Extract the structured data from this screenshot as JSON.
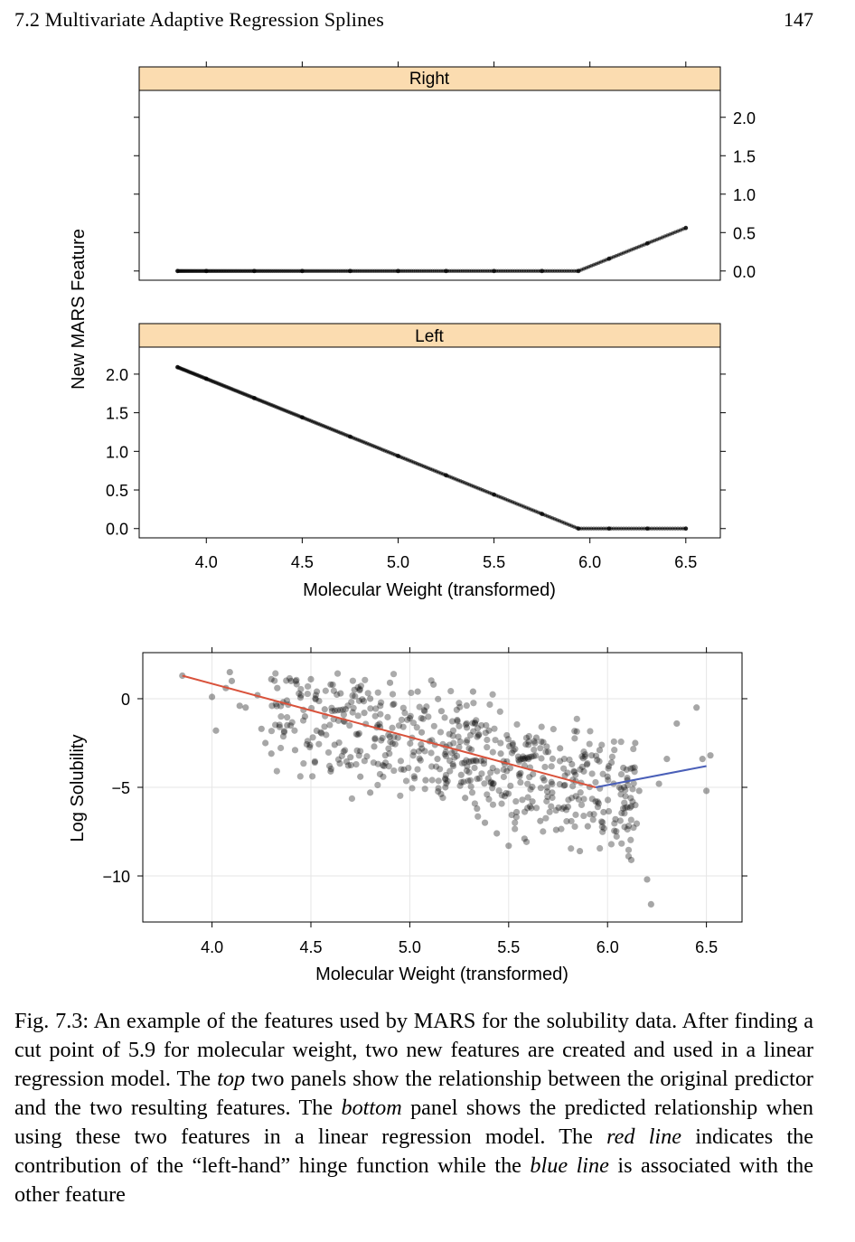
{
  "header": {
    "section_title": "7.2 Multivariate Adaptive Regression Splines",
    "page_number": "147"
  },
  "figure_top": {
    "y_axis_label": "New MARS Feature",
    "x_axis_label": "Molecular Weight (transformed)",
    "strip_color": "#fbdcb0",
    "panels": [
      {
        "strip_label": "Right",
        "y_tick_side": "right"
      },
      {
        "strip_label": "Left",
        "y_tick_side": "left"
      }
    ]
  },
  "figure_bottom": {
    "y_axis_label": "Log Solubility",
    "x_axis_label": "Molecular Weight (transformed)",
    "left_fit_color": "#d9523b",
    "right_fit_color": "#4a5fb8"
  },
  "chart_data": [
    {
      "type": "line",
      "panel": "Right",
      "xlabel": "",
      "ylabel": "New MARS Feature",
      "xlim": [
        3.65,
        6.68
      ],
      "ylim": [
        -0.12,
        2.35
      ],
      "x_ticks": [
        "4.0",
        "4.5",
        "5.0",
        "5.5",
        "6.0",
        "6.5"
      ],
      "y_ticks": [
        "0.0",
        "0.5",
        "1.0",
        "1.5",
        "2.0"
      ],
      "hinge": {
        "cut": 5.94,
        "direction": "right"
      },
      "x": [
        3.85,
        4.0,
        4.25,
        4.5,
        4.75,
        5.0,
        5.25,
        5.5,
        5.75,
        5.94,
        6.1,
        6.3,
        6.5
      ],
      "y": [
        0.0,
        0.0,
        0.0,
        0.0,
        0.0,
        0.0,
        0.0,
        0.0,
        0.0,
        0.0,
        0.16,
        0.36,
        0.56
      ]
    },
    {
      "type": "line",
      "panel": "Left",
      "xlabel": "Molecular Weight (transformed)",
      "ylabel": "New MARS Feature",
      "xlim": [
        3.65,
        6.68
      ],
      "ylim": [
        -0.12,
        2.35
      ],
      "x_ticks": [
        "4.0",
        "4.5",
        "5.0",
        "5.5",
        "6.0",
        "6.5"
      ],
      "y_ticks": [
        "0.0",
        "0.5",
        "1.0",
        "1.5",
        "2.0"
      ],
      "hinge": {
        "cut": 5.94,
        "direction": "left"
      },
      "x": [
        3.85,
        4.0,
        4.25,
        4.5,
        4.75,
        5.0,
        5.25,
        5.5,
        5.75,
        5.94,
        6.1,
        6.3,
        6.5
      ],
      "y": [
        2.09,
        1.94,
        1.69,
        1.44,
        1.19,
        0.94,
        0.69,
        0.44,
        0.19,
        0.0,
        0.0,
        0.0,
        0.0
      ]
    },
    {
      "type": "scatter",
      "xlabel": "Molecular Weight (transformed)",
      "ylabel": "Log Solubility",
      "xlim": [
        3.65,
        6.68
      ],
      "ylim": [
        -12.6,
        2.6
      ],
      "x_ticks": [
        "4.0",
        "4.5",
        "5.0",
        "5.5",
        "6.0",
        "6.5"
      ],
      "y_ticks": [
        "0",
        "−5",
        "−10"
      ],
      "fit_left": {
        "x": [
          3.85,
          5.94
        ],
        "y": [
          1.3,
          -5.0
        ]
      },
      "fit_right": {
        "x": [
          5.94,
          6.5
        ],
        "y": [
          -5.0,
          -3.8
        ]
      },
      "points": [
        [
          3.85,
          1.3
        ],
        [
          4.0,
          0.1
        ],
        [
          4.02,
          -1.8
        ],
        [
          4.07,
          0.6
        ],
        [
          4.09,
          1.5
        ],
        [
          4.1,
          1.0
        ],
        [
          4.14,
          -0.4
        ],
        [
          4.17,
          -0.5
        ],
        [
          4.23,
          0.2
        ],
        [
          4.25,
          -1.7
        ],
        [
          4.27,
          -2.5
        ],
        [
          4.3,
          -3.1
        ],
        [
          4.3,
          1.1
        ],
        [
          4.33,
          0.6
        ],
        [
          4.36,
          -0.2
        ],
        [
          4.38,
          -1.5
        ],
        [
          4.4,
          1.0
        ],
        [
          4.42,
          -2.9
        ],
        [
          4.45,
          0.2
        ],
        [
          4.47,
          -1.0
        ],
        [
          4.5,
          1.1
        ],
        [
          4.52,
          -3.6
        ],
        [
          4.53,
          0.4
        ],
        [
          4.55,
          -1.9
        ],
        [
          4.57,
          -0.6
        ],
        [
          4.6,
          0.8
        ],
        [
          4.6,
          -4.1
        ],
        [
          4.62,
          -2.6
        ],
        [
          4.65,
          0.3
        ],
        [
          4.67,
          -1.3
        ],
        [
          4.7,
          -3.3
        ],
        [
          4.72,
          0.5
        ],
        [
          4.73,
          -2.0
        ],
        [
          4.75,
          -4.4
        ],
        [
          4.77,
          -0.8
        ],
        [
          4.8,
          -5.3
        ],
        [
          4.8,
          0.0
        ],
        [
          4.82,
          -2.7
        ],
        [
          4.85,
          -1.6
        ],
        [
          4.87,
          -3.8
        ],
        [
          4.9,
          0.9
        ],
        [
          4.92,
          -0.3
        ],
        [
          4.94,
          -2.2
        ],
        [
          4.97,
          -4.0
        ],
        [
          5.0,
          -1.1
        ],
        [
          5.02,
          -3.0
        ],
        [
          5.04,
          0.4
        ],
        [
          5.06,
          -1.9
        ],
        [
          5.08,
          -4.6
        ],
        [
          5.1,
          -2.4
        ],
        [
          5.12,
          0.8
        ],
        [
          5.14,
          -3.4
        ],
        [
          5.16,
          -0.7
        ],
        [
          5.18,
          -5.0
        ],
        [
          5.2,
          -2.0
        ],
        [
          5.22,
          -3.8
        ],
        [
          5.24,
          -1.2
        ],
        [
          5.26,
          -4.3
        ],
        [
          5.28,
          -5.6
        ],
        [
          5.3,
          -2.8
        ],
        [
          5.32,
          0.4
        ],
        [
          5.34,
          -6.2
        ],
        [
          5.36,
          -3.5
        ],
        [
          5.38,
          -7.0
        ],
        [
          5.4,
          -1.8
        ],
        [
          5.42,
          -4.8
        ],
        [
          5.44,
          -7.6
        ],
        [
          5.46,
          -3.1
        ],
        [
          5.48,
          -5.5
        ],
        [
          5.5,
          -8.3
        ],
        [
          5.52,
          -2.6
        ],
        [
          5.54,
          -6.4
        ],
        [
          5.56,
          -4.2
        ],
        [
          5.58,
          -7.9
        ],
        [
          5.6,
          -3.4
        ],
        [
          5.62,
          -5.8
        ],
        [
          5.64,
          -2.2
        ],
        [
          5.66,
          -6.9
        ],
        [
          5.68,
          -4.6
        ],
        [
          5.7,
          -3.0
        ],
        [
          5.72,
          -5.3
        ],
        [
          5.74,
          -7.4
        ],
        [
          5.76,
          -2.8
        ],
        [
          5.78,
          -4.9
        ],
        [
          5.8,
          -6.1
        ],
        [
          5.82,
          -3.7
        ],
        [
          5.84,
          -5.5
        ],
        [
          5.86,
          -8.6
        ],
        [
          5.88,
          -4.1
        ],
        [
          5.9,
          -7.2
        ],
        [
          5.92,
          -3.2
        ],
        [
          5.94,
          -5.8
        ],
        [
          5.96,
          -2.9
        ],
        [
          5.98,
          -6.4
        ],
        [
          6.0,
          -4.4
        ],
        [
          6.02,
          -3.6
        ],
        [
          6.04,
          -6.8
        ],
        [
          6.06,
          -5.0
        ],
        [
          6.08,
          -3.9
        ],
        [
          6.1,
          -4.6
        ],
        [
          6.12,
          -9.1
        ],
        [
          6.14,
          -2.5
        ],
        [
          6.16,
          -5.2
        ],
        [
          6.2,
          -10.2
        ],
        [
          6.22,
          -11.6
        ],
        [
          6.26,
          -4.8
        ],
        [
          6.3,
          -3.4
        ],
        [
          6.35,
          -1.4
        ],
        [
          6.45,
          -0.5
        ],
        [
          6.48,
          -3.4
        ],
        [
          6.5,
          -5.2
        ],
        [
          6.52,
          -3.2
        ]
      ]
    }
  ],
  "caption": {
    "segments": [
      {
        "text": "Fig. 7.3: An example of the features used by MARS for the solubility data. After finding a cut point of 5.9 for molecular weight, two new features are created and used in a linear regression model. The ",
        "italic": false
      },
      {
        "text": "top",
        "italic": true
      },
      {
        "text": " two panels show the relationship between the original predictor and the two resulting features. The ",
        "italic": false
      },
      {
        "text": "bottom",
        "italic": true
      },
      {
        "text": " panel shows the predicted relationship when using these two features in a linear regression model. The ",
        "italic": false
      },
      {
        "text": "red line",
        "italic": true
      },
      {
        "text": " indicates the contribution of the “left-hand” hinge function while the ",
        "italic": false
      },
      {
        "text": "blue line",
        "italic": true
      },
      {
        "text": " is associated with the other feature",
        "italic": false
      }
    ]
  }
}
